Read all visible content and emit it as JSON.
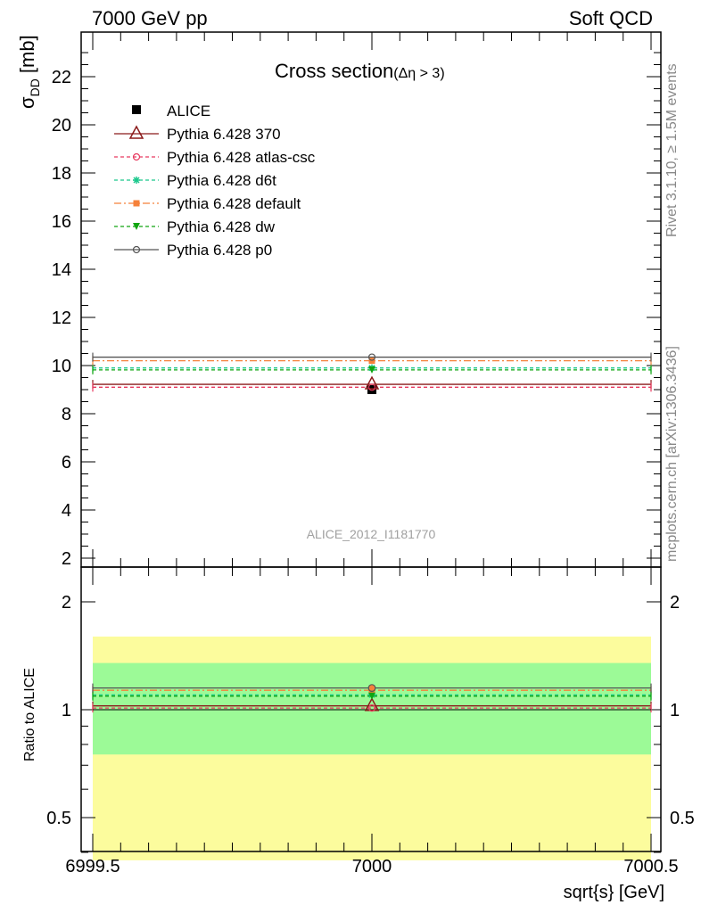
{
  "header": {
    "left": "7000 GeV pp",
    "right": "Soft QCD"
  },
  "side_text": {
    "rivet": "Rivet 3.1.10, ≥ 1.5M events",
    "mcplots": "mcplots.cern.ch [arXiv:1306.3436]"
  },
  "chart_data": {
    "type": "scatter",
    "title": "Cross section",
    "title_sub": "(Δη > 3)",
    "watermark": "ALICE_2012_I1181770",
    "xlabel": "sqrt{s} [GeV]",
    "ylabel_main": "σ",
    "ylabel_sub": "DD",
    "ylabel_unit": " [mb]",
    "ylabel_ratio": "Ratio to ALICE",
    "xlim": [
      6999.5,
      7000.5
    ],
    "ylim_main": [
      1.6,
      24
    ],
    "ylim_ratio": [
      0.4,
      2.4
    ],
    "ratio_scale": "log",
    "x_ticks": [
      "6999.5",
      "7000",
      "7000.5"
    ],
    "y_ticks_main": [
      "2",
      "4",
      "6",
      "8",
      "10",
      "12",
      "14",
      "16",
      "18",
      "20",
      "22"
    ],
    "y_ticks_ratio": [
      "0.5",
      "1",
      "2"
    ],
    "data": {
      "name": "ALICE",
      "x": 7000,
      "y": 9.0,
      "err": 0.0,
      "band_inner": [
        0.75,
        1.35
      ],
      "band_outer": [
        0.38,
        1.6
      ],
      "band_inner_color": "#9cfa97",
      "band_outer_color": "#fcfc9d"
    },
    "series": [
      {
        "name": "Pythia 6.428 370",
        "y": 9.22,
        "ratio": 1.025,
        "color": "#8b1a1a",
        "dash": "",
        "marker": "triangle-open"
      },
      {
        "name": "Pythia 6.428 atlas-csc",
        "y": 9.1,
        "ratio": 1.011,
        "color": "#e8395f",
        "dash": "4,3",
        "marker": "circle-open"
      },
      {
        "name": "Pythia 6.428 d6t",
        "y": 9.9,
        "ratio": 1.1,
        "color": "#1ac88c",
        "dash": "4,3",
        "marker": "star"
      },
      {
        "name": "Pythia 6.428 default",
        "y": 10.2,
        "ratio": 1.133,
        "color": "#f5813a",
        "dash": "8,3,2,3",
        "marker": "square"
      },
      {
        "name": "Pythia 6.428 dw",
        "y": 9.82,
        "ratio": 1.091,
        "color": "#11a511",
        "dash": "4,3",
        "marker": "triangle-down"
      },
      {
        "name": "Pythia 6.428 p0",
        "y": 10.35,
        "ratio": 1.15,
        "color": "#555555",
        "dash": "",
        "marker": "circle-open-gray"
      }
    ]
  }
}
